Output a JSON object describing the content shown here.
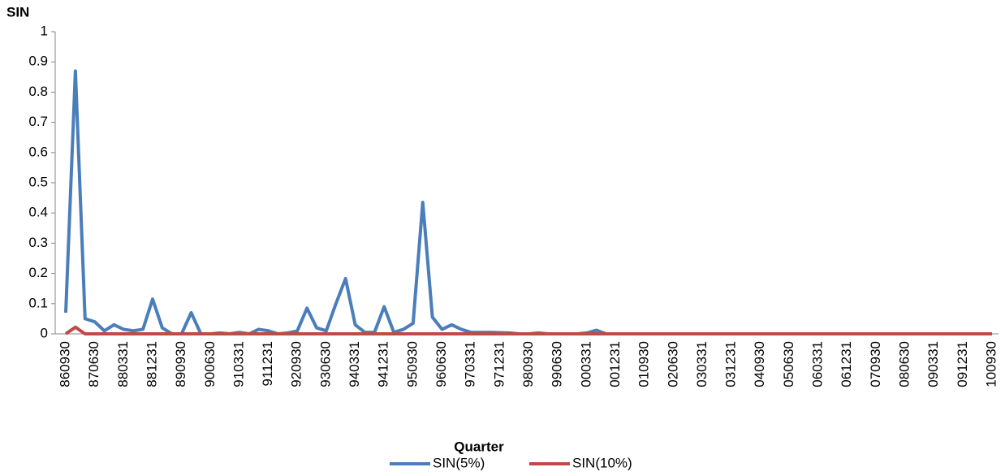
{
  "chart_data": {
    "type": "line",
    "y_label": "SIN",
    "x_label": "Quarter",
    "categories": [
      "860930",
      null,
      null,
      "870630",
      null,
      null,
      "880331",
      null,
      null,
      "881231",
      null,
      null,
      "890930",
      null,
      null,
      "900630",
      null,
      null,
      "910331",
      null,
      null,
      "911231",
      null,
      null,
      "920930",
      null,
      null,
      "930630",
      null,
      null,
      "940331",
      null,
      null,
      "941231",
      null,
      null,
      "950930",
      null,
      null,
      "960630",
      null,
      null,
      "970331",
      null,
      null,
      "971231",
      null,
      null,
      "980930",
      null,
      null,
      "990630",
      null,
      null,
      "000331",
      null,
      null,
      "001231",
      null,
      null,
      "010930",
      null,
      null,
      "020630",
      null,
      null,
      "030331",
      null,
      null,
      "031231",
      null,
      null,
      "040930",
      null,
      null,
      "050630",
      null,
      null,
      "060331",
      null,
      null,
      "061231",
      null,
      null,
      "070930",
      null,
      null,
      "080630",
      null,
      null,
      "090331",
      null,
      null,
      "091231",
      null,
      null,
      "100930"
    ],
    "series": [
      {
        "name": "SIN(5%)",
        "color": "#4a7ebb",
        "values": [
          0.07,
          0.87,
          0.05,
          0.04,
          0.01,
          0.03,
          0.015,
          0.01,
          0.015,
          0.115,
          0.02,
          0,
          0,
          0.07,
          0,
          0,
          0.003,
          0,
          0.005,
          0,
          0.015,
          0.01,
          0,
          0.003,
          0.01,
          0.085,
          0.02,
          0.01,
          0.1,
          0.183,
          0.03,
          0.005,
          0.005,
          0.09,
          0.005,
          0.015,
          0.035,
          0.435,
          0.055,
          0.015,
          0.03,
          0.015,
          0.005,
          0.005,
          0.005,
          0.004,
          0.003,
          0,
          0,
          0.003,
          0,
          0,
          0,
          0,
          0.003,
          0.012,
          0,
          0,
          0,
          0,
          0,
          0,
          0,
          0,
          0,
          0,
          0,
          0,
          0,
          0,
          0,
          0,
          0,
          0,
          0,
          0,
          0,
          0,
          0,
          0,
          0,
          0,
          0,
          0,
          0,
          0,
          0,
          0,
          0,
          0,
          0,
          0,
          0,
          0,
          0,
          0,
          0
        ]
      },
      {
        "name": "SIN(10%)",
        "color": "#be4b48",
        "values": [
          0,
          0.022,
          0,
          0,
          0,
          0,
          0,
          0,
          0,
          0,
          0,
          0,
          0,
          0,
          0,
          0,
          0,
          0,
          0,
          0,
          0,
          0,
          0,
          0,
          0,
          0,
          0,
          0,
          0,
          0,
          0,
          0,
          0,
          0,
          0,
          0,
          0,
          0,
          0,
          0,
          0,
          0,
          0,
          0,
          0,
          0,
          0,
          0,
          0,
          0,
          0,
          0,
          0,
          0,
          0,
          0,
          0,
          0,
          0,
          0,
          0,
          0,
          0,
          0,
          0,
          0,
          0,
          0,
          0,
          0,
          0,
          0,
          0,
          0,
          0,
          0,
          0,
          0,
          0,
          0,
          0,
          0,
          0,
          0,
          0,
          0,
          0,
          0,
          0,
          0,
          0,
          0,
          0,
          0,
          0,
          0,
          0
        ]
      }
    ],
    "ylim": [
      0,
      1
    ],
    "yticks": [
      0,
      0.1,
      0.2,
      0.3,
      0.4,
      0.5,
      0.6,
      0.7,
      0.8,
      0.9,
      1
    ],
    "legend": "bottom"
  }
}
